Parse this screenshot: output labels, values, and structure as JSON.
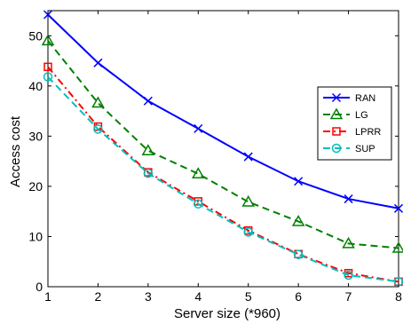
{
  "chart_data": {
    "type": "line",
    "title": "",
    "xlabel": "Server size (*960)",
    "ylabel": "Access cost",
    "xlim": [
      1,
      8
    ],
    "ylim": [
      0,
      55
    ],
    "xticks": [
      1,
      2,
      3,
      4,
      5,
      6,
      7,
      8
    ],
    "yticks": [
      0,
      10,
      20,
      30,
      40,
      50
    ],
    "grid": false,
    "legend_position": "right",
    "x": [
      1,
      2,
      3,
      4,
      5,
      6,
      7,
      8
    ],
    "series": [
      {
        "name": "RAN",
        "color": "#0000ff",
        "dash": "solid",
        "marker": "x",
        "values": [
          54.2,
          44.6,
          37.0,
          31.5,
          25.9,
          21.0,
          17.5,
          15.6
        ]
      },
      {
        "name": "LG",
        "color": "#008000",
        "dash": "dashed",
        "marker": "triangle",
        "values": [
          49.0,
          36.6,
          27.1,
          22.5,
          16.9,
          13.0,
          8.6,
          7.7
        ]
      },
      {
        "name": "LPRR",
        "color": "#ff0000",
        "dash": "dashdot",
        "marker": "square",
        "values": [
          43.8,
          31.9,
          22.8,
          17.0,
          11.2,
          6.5,
          2.7,
          1.0
        ]
      },
      {
        "name": "SUP",
        "color": "#00bfbf",
        "dash": "dashed",
        "marker": "circle",
        "values": [
          41.8,
          31.4,
          22.6,
          16.5,
          10.9,
          6.4,
          2.3,
          1.0
        ]
      }
    ]
  }
}
